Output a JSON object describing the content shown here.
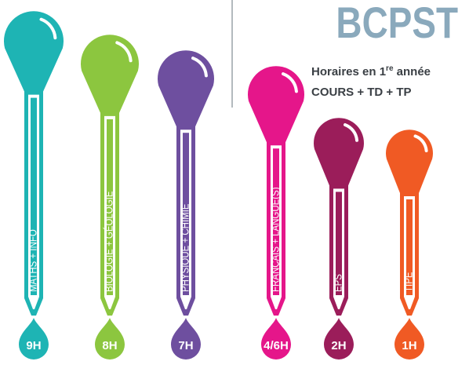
{
  "header": {
    "title": "BCPST",
    "subtitle": {
      "text": "Horaires en 1",
      "sup": "re",
      "after": " année"
    },
    "subtitle2": "COURS + TD + TP"
  },
  "items": [
    {
      "label": "MATHS + INFO",
      "hours": "9H",
      "color": "#1eb4b4"
    },
    {
      "label": "BIOLOGIE + GÉOLOGIE",
      "hours": "8H",
      "color": "#8cc63f"
    },
    {
      "label": "PHYSIQUE + CHIMIE",
      "hours": "7H",
      "color": "#6e4f9f"
    },
    {
      "label": "FRANÇAIS + LANGUE(S)",
      "hours": "4/6H",
      "color": "#e5168a"
    },
    {
      "label": "EPS",
      "hours": "2H",
      "color": "#9b1d5a"
    },
    {
      "label": "TIPE",
      "hours": "1H",
      "color": "#f05a24"
    }
  ]
}
